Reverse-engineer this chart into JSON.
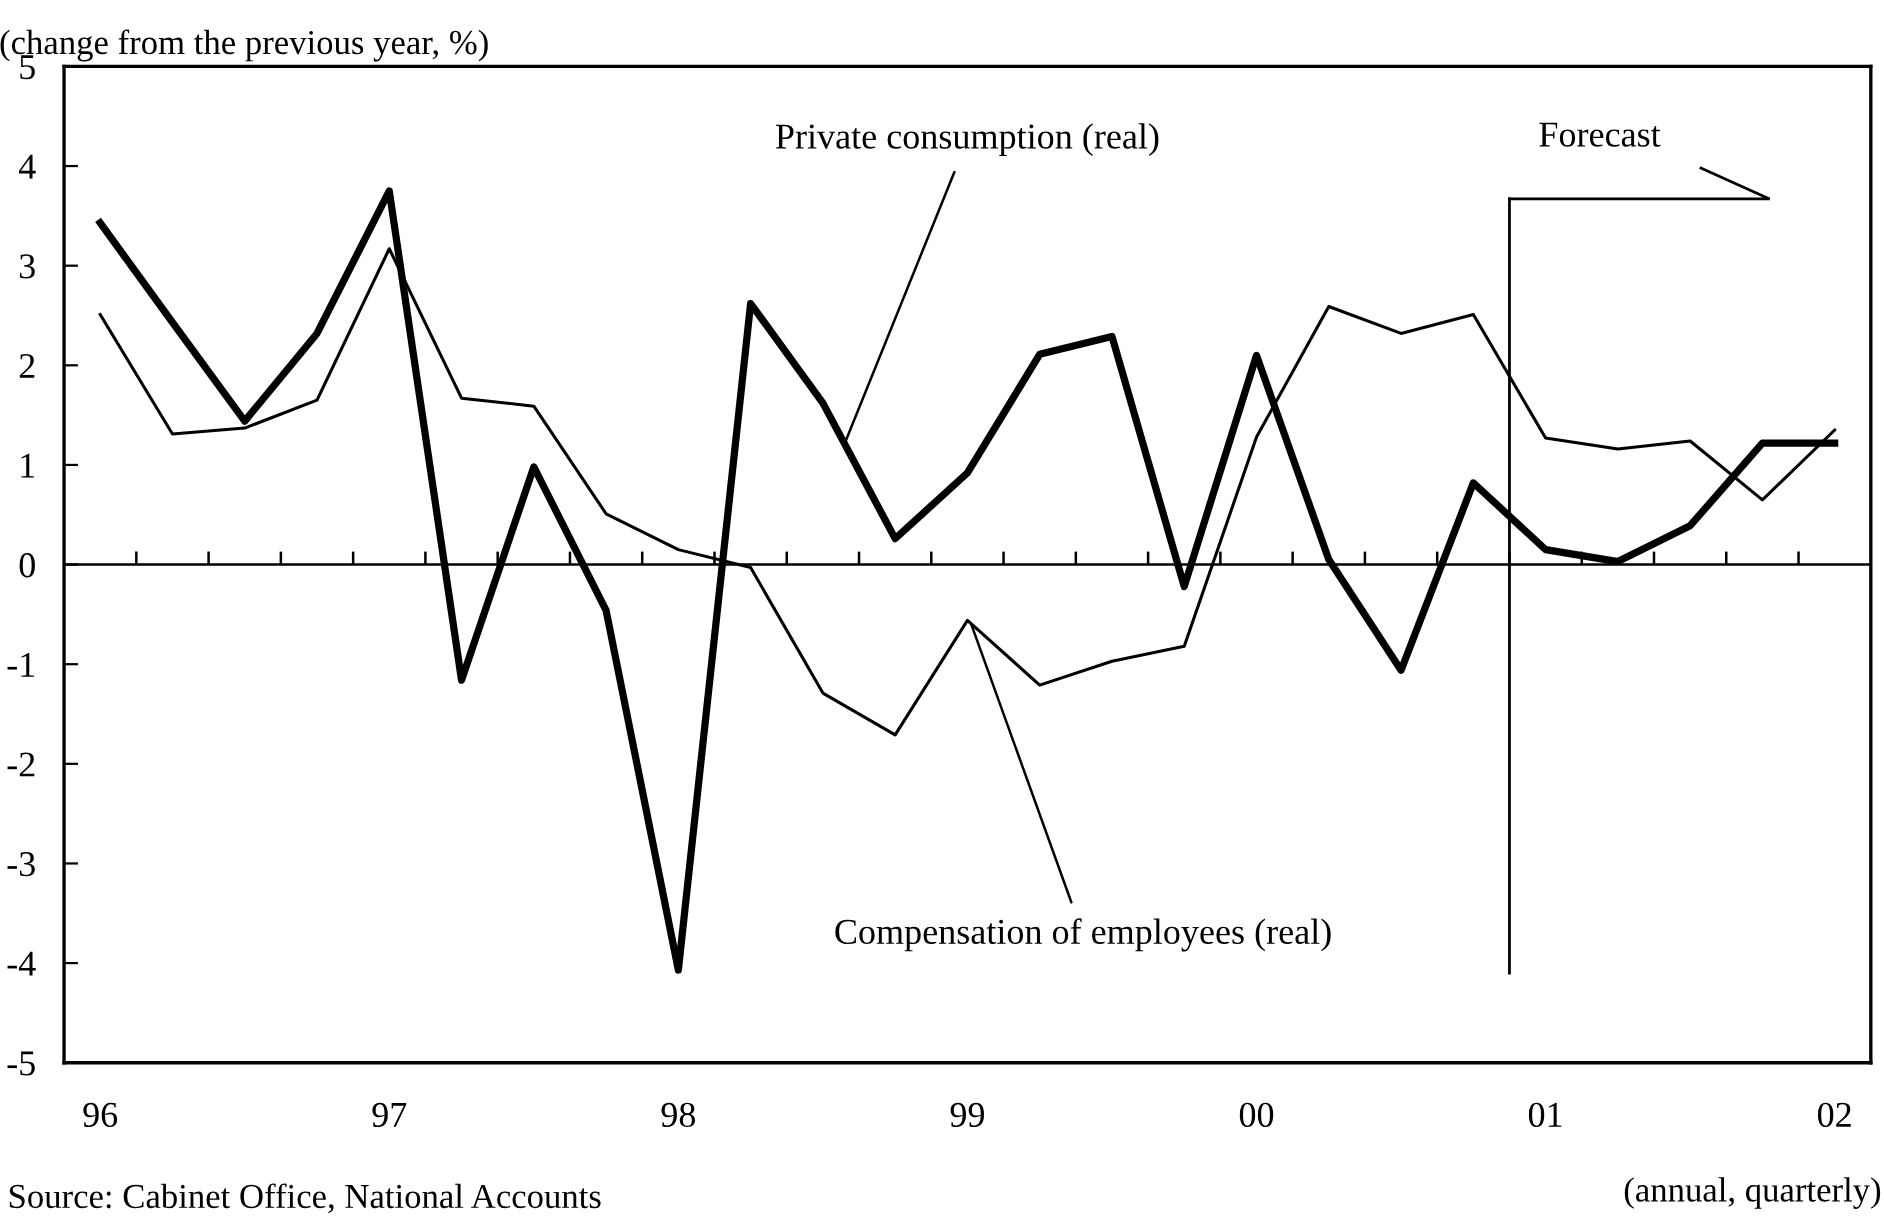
{
  "chart_data": {
    "type": "line",
    "ylabel": "(change from the previous year, %)",
    "xlabel": "(annual, quarterly)",
    "x": [
      1996,
      1996.25,
      1996.5,
      1996.75,
      1997,
      1997.25,
      1997.5,
      1997.75,
      1998,
      1998.25,
      1998.5,
      1998.75,
      1999,
      1999.25,
      1999.5,
      1999.75,
      2000,
      2000.25,
      2000.5,
      2000.75,
      2001,
      2001.25,
      2001.5,
      2001.75,
      2002
    ],
    "xlim": [
      1995.875,
      2002.125
    ],
    "xticks": [
      {
        "value": 1996,
        "label": "96"
      },
      {
        "value": 1997,
        "label": "97"
      },
      {
        "value": 1998,
        "label": "98"
      },
      {
        "value": 1999,
        "label": "99"
      },
      {
        "value": 2000,
        "label": "00"
      },
      {
        "value": 2001,
        "label": "01"
      },
      {
        "value": 2002,
        "label": "02"
      }
    ],
    "ref_lines": [
      {
        "axis": "y",
        "value": 0
      },
      {
        "axis": "x",
        "value": 2000.875,
        "label": "Forecast"
      }
    ],
    "series": [
      {
        "name": "Private consumption (real)",
        "color": "#000000",
        "values": [
          3.43,
          2.43,
          1.44,
          2.32,
          3.75,
          -1.16,
          0.98,
          -0.46,
          -4.07,
          2.62,
          1.62,
          0.26,
          0.92,
          2.11,
          2.29,
          -0.22,
          2.1,
          0.05,
          -1.06,
          0.82,
          0.15,
          0.03,
          0.39,
          1.22,
          1.22
        ]
      },
      {
        "name": "Compensation of employees (real)",
        "color": "#000000",
        "values": [
          2.51,
          1.31,
          1.37,
          1.65,
          3.17,
          1.67,
          1.59,
          0.51,
          0.15,
          -0.03,
          -1.29,
          -1.71,
          -0.56,
          -1.21,
          -0.97,
          -0.82,
          1.28,
          2.59,
          2.32,
          2.51,
          1.27,
          1.16,
          1.24,
          0.65,
          1.35
        ]
      }
    ],
    "ylim": [
      -5,
      5
    ],
    "yticks": [
      -5,
      -4,
      -3,
      -2,
      -1,
      0,
      1,
      2,
      3,
      4,
      5
    ],
    "grid": false,
    "legend": false,
    "marker": "none",
    "line_style": "solid",
    "annotations": [
      "Source: Cabinet Office, National Accounts"
    ]
  }
}
